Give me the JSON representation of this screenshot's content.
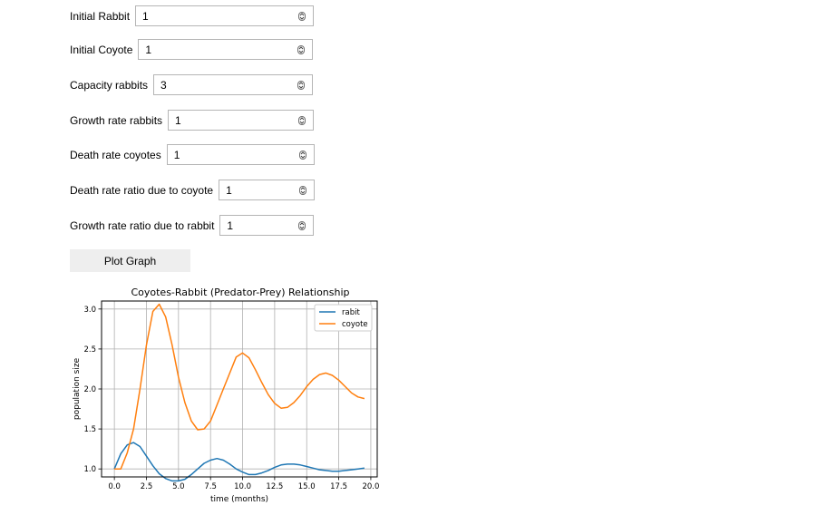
{
  "form": {
    "fields": [
      {
        "label": "Initial Rabbit",
        "value": "1"
      },
      {
        "label": "Initial Coyote",
        "value": "1"
      },
      {
        "label": "Capacity rabbits",
        "value": "3"
      },
      {
        "label": "Growth rate rabbits",
        "value": "1"
      },
      {
        "label": "Death rate coyotes",
        "value": "1"
      },
      {
        "label": "Death rate ratio due to coyote",
        "value": "1"
      },
      {
        "label": "Growth rate ratio due to rabbit",
        "value": "1"
      }
    ],
    "plot_button_label": "Plot Graph"
  },
  "chart_data": {
    "type": "line",
    "title": "Coyotes-Rabbit (Predator-Prey) Relationship",
    "xlabel": "time (months)",
    "ylabel": "population size",
    "xlim": [
      -1.0,
      20.5
    ],
    "ylim": [
      0.9,
      3.1
    ],
    "x_ticks": [
      "0.0",
      "2.5",
      "5.0",
      "7.5",
      "10.0",
      "12.5",
      "15.0",
      "17.5",
      "20.0"
    ],
    "y_ticks": [
      "1.0",
      "1.5",
      "2.0",
      "2.5",
      "3.0"
    ],
    "grid": true,
    "legend_position": "upper right",
    "series": [
      {
        "name": "rabit",
        "color": "#1f77b4",
        "x": [
          0.0,
          0.5,
          1.0,
          1.5,
          2.0,
          2.5,
          3.0,
          3.5,
          4.0,
          4.5,
          5.0,
          5.5,
          6.0,
          6.5,
          7.0,
          7.5,
          8.0,
          8.5,
          9.0,
          9.5,
          10.0,
          10.5,
          11.0,
          11.5,
          12.0,
          12.5,
          13.0,
          13.5,
          14.0,
          14.5,
          15.0,
          15.5,
          16.0,
          16.5,
          17.0,
          17.5,
          18.0,
          18.5,
          19.0,
          19.5
        ],
        "values": [
          1.0,
          1.19,
          1.3,
          1.33,
          1.28,
          1.16,
          1.04,
          0.94,
          0.88,
          0.85,
          0.85,
          0.87,
          0.93,
          1.0,
          1.07,
          1.11,
          1.13,
          1.11,
          1.06,
          1.0,
          0.96,
          0.93,
          0.93,
          0.95,
          0.98,
          1.02,
          1.05,
          1.06,
          1.06,
          1.05,
          1.03,
          1.01,
          0.99,
          0.98,
          0.97,
          0.97,
          0.98,
          0.99,
          1.0,
          1.01
        ]
      },
      {
        "name": "coyote",
        "color": "#ff7f0e",
        "x": [
          0.0,
          0.5,
          1.0,
          1.5,
          2.0,
          2.5,
          3.0,
          3.5,
          4.0,
          4.5,
          5.0,
          5.5,
          6.0,
          6.5,
          7.0,
          7.5,
          8.0,
          8.5,
          9.0,
          9.5,
          10.0,
          10.5,
          11.0,
          11.5,
          12.0,
          12.5,
          13.0,
          13.5,
          14.0,
          14.5,
          15.0,
          15.5,
          16.0,
          16.5,
          17.0,
          17.5,
          18.0,
          18.5,
          19.0,
          19.5
        ],
        "values": [
          1.0,
          1.0,
          1.2,
          1.5,
          2.0,
          2.55,
          2.97,
          3.06,
          2.9,
          2.55,
          2.15,
          1.83,
          1.6,
          1.49,
          1.5,
          1.6,
          1.8,
          2.0,
          2.2,
          2.4,
          2.45,
          2.39,
          2.24,
          2.08,
          1.93,
          1.82,
          1.76,
          1.77,
          1.83,
          1.92,
          2.03,
          2.12,
          2.18,
          2.2,
          2.17,
          2.11,
          2.03,
          1.95,
          1.9,
          1.88
        ]
      }
    ]
  }
}
